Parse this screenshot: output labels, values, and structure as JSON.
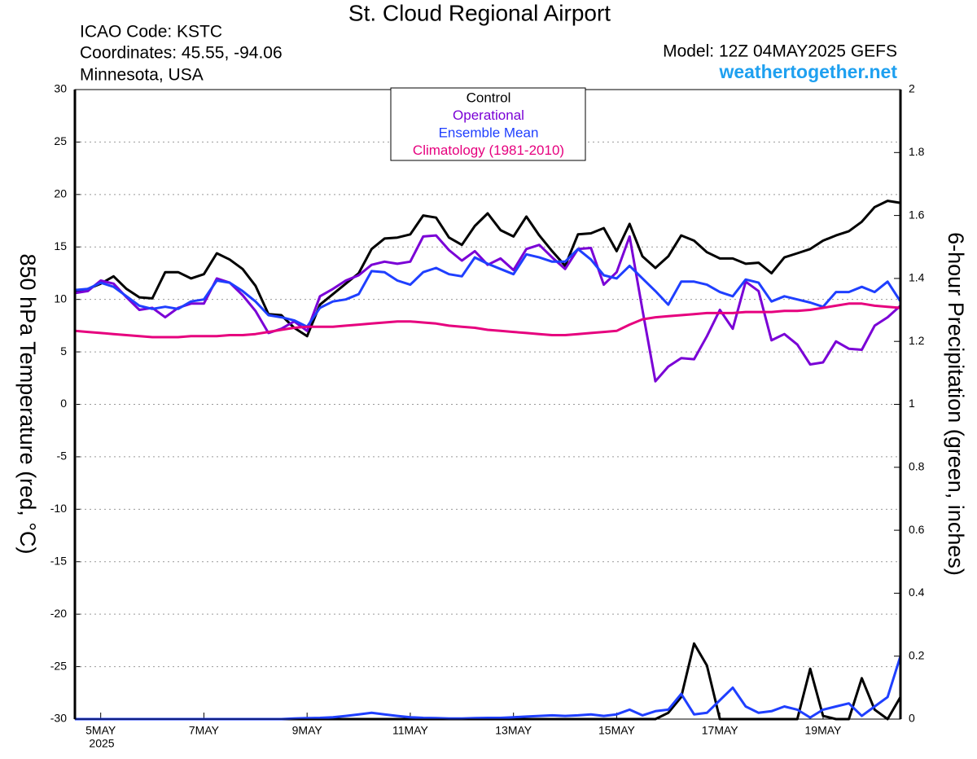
{
  "chart_data": {
    "type": "line",
    "title": "St. Cloud Regional Airport",
    "info": [
      "ICAO Code: KSTC",
      "Coordinates: 45.55, -94.06",
      "Minnesota, USA"
    ],
    "model": "Model: 12Z 04MAY2025 GEFS",
    "site": "weathertogether.net",
    "ylabel": "850 hPa Temperature (red, °C)",
    "y2label": "6-hour Precipitation (green, inches)",
    "year_label": "2025",
    "grid": true,
    "xlim": [
      -0.5,
      15.5
    ],
    "xticks": [
      {
        "value": 0,
        "label": "5MAY"
      },
      {
        "value": 2,
        "label": "7MAY"
      },
      {
        "value": 4,
        "label": "9MAY"
      },
      {
        "value": 6,
        "label": "11MAY"
      },
      {
        "value": 8,
        "label": "13MAY"
      },
      {
        "value": 10,
        "label": "15MAY"
      },
      {
        "value": 12,
        "label": "17MAY"
      },
      {
        "value": 14,
        "label": "19MAY"
      }
    ],
    "ylim": [
      -30,
      30
    ],
    "yticks": [
      -30,
      -25,
      -20,
      -15,
      -10,
      -5,
      0,
      5,
      10,
      15,
      20,
      25,
      30
    ],
    "y2lim": [
      0,
      2
    ],
    "y2ticks": [
      0,
      0.2,
      0.4,
      0.6,
      0.8,
      1,
      1.2,
      1.4,
      1.6,
      1.8,
      2
    ],
    "x": [
      -0.5,
      -0.25,
      0,
      0.25,
      0.5,
      0.75,
      1,
      1.25,
      1.5,
      1.75,
      2,
      2.25,
      2.5,
      2.75,
      3,
      3.25,
      3.5,
      3.75,
      4,
      4.25,
      4.5,
      4.75,
      5,
      5.25,
      5.5,
      5.75,
      6,
      6.25,
      6.5,
      6.75,
      7,
      7.25,
      7.5,
      7.75,
      8,
      8.25,
      8.5,
      8.75,
      9,
      9.25,
      9.5,
      9.75,
      10,
      10.25,
      10.5,
      10.75,
      11,
      11.25,
      11.5,
      11.75,
      12,
      12.25,
      12.5,
      12.75,
      13,
      13.25,
      13.5,
      13.75,
      14,
      14.25,
      14.5,
      14.75,
      15,
      15.25,
      15.5
    ],
    "series": [
      {
        "name": "Control",
        "color": "#000000",
        "width": 3,
        "values": [
          10.8,
          11,
          11.5,
          12.2,
          11,
          10.2,
          10.1,
          12.6,
          12.6,
          12,
          12.4,
          14.4,
          13.8,
          12.9,
          11.3,
          8.6,
          8.5,
          7.3,
          6.5,
          9.5,
          10.5,
          11.5,
          12.5,
          14.8,
          15.8,
          15.9,
          16.2,
          18,
          17.8,
          15.9,
          15.2,
          17,
          18.2,
          16.6,
          16,
          17.9,
          16.1,
          14.6,
          13.2,
          16.2,
          16.3,
          16.8,
          14.6,
          17.2,
          14.1,
          13,
          14.1,
          16.1,
          15.6,
          14.5,
          13.9,
          13.9,
          13.4,
          13.5,
          12.5,
          14,
          14.4,
          14.8,
          15.6,
          16.1,
          16.5,
          17.4,
          18.8,
          19.4,
          19.2
        ]
      },
      {
        "name": "Operational",
        "color": "#7a00d6",
        "width": 3,
        "values": [
          10.6,
          10.8,
          11.8,
          11.5,
          10.2,
          9,
          9.2,
          8.3,
          9.2,
          9.6,
          9.6,
          12,
          11.6,
          10.4,
          8.9,
          6.8,
          7.2,
          7.9,
          7,
          10.3,
          11,
          11.8,
          12.3,
          13.3,
          13.6,
          13.4,
          13.6,
          16,
          16.1,
          14.7,
          13.7,
          14.6,
          13.3,
          13.9,
          12.8,
          14.8,
          15.2,
          14,
          12.9,
          14.8,
          14.9,
          11.4,
          12.6,
          16,
          9,
          2.2,
          3.6,
          4.4,
          4.3,
          6.5,
          9,
          7.2,
          11.7,
          10.8,
          6.1,
          6.7,
          5.7,
          3.8,
          4,
          6,
          5.3,
          5.2,
          7.5,
          8.3,
          9.4
        ]
      },
      {
        "name": "Ensemble Mean",
        "color": "#1f3fff",
        "width": 3,
        "values": [
          10.9,
          11,
          11.6,
          11.2,
          10.3,
          9.4,
          9.1,
          9.3,
          9.1,
          9.8,
          10,
          11.8,
          11.6,
          10.8,
          9.8,
          8.5,
          8.3,
          8,
          7.4,
          9.2,
          9.8,
          10,
          10.5,
          12.7,
          12.6,
          11.8,
          11.4,
          12.6,
          13,
          12.4,
          12.2,
          14,
          13.4,
          12.9,
          12.4,
          14.3,
          14,
          13.6,
          13.6,
          14.8,
          13.8,
          12.3,
          12,
          13.2,
          12,
          10.8,
          9.5,
          11.7,
          11.7,
          11.4,
          10.7,
          10.3,
          11.9,
          11.6,
          9.8,
          10.3,
          10,
          9.7,
          9.3,
          10.7,
          10.7,
          11.2,
          10.7,
          11.7,
          9.8
        ]
      },
      {
        "name": "Climatology (1981-2010)",
        "color": "#e6007e",
        "width": 3,
        "values": [
          7,
          6.9,
          6.8,
          6.7,
          6.6,
          6.5,
          6.4,
          6.4,
          6.4,
          6.5,
          6.5,
          6.5,
          6.6,
          6.6,
          6.7,
          6.9,
          7.1,
          7.3,
          7.4,
          7.4,
          7.4,
          7.5,
          7.6,
          7.7,
          7.8,
          7.9,
          7.9,
          7.8,
          7.7,
          7.5,
          7.4,
          7.3,
          7.1,
          7,
          6.9,
          6.8,
          6.7,
          6.6,
          6.6,
          6.7,
          6.8,
          6.9,
          7,
          7.6,
          8.1,
          8.3,
          8.4,
          8.5,
          8.6,
          8.7,
          8.7,
          8.7,
          8.8,
          8.8,
          8.8,
          8.9,
          8.9,
          9,
          9.2,
          9.4,
          9.6,
          9.6,
          9.4,
          9.3,
          9.2
        ]
      },
      {
        "axis": "y2",
        "color": "#000000",
        "width": 3,
        "values": [
          0,
          0,
          0,
          0,
          0,
          0,
          0,
          0,
          0,
          0,
          0,
          0,
          0,
          0,
          0,
          0,
          0,
          0,
          0,
          0,
          0,
          0,
          0,
          0,
          0,
          0,
          0,
          0,
          0,
          0,
          0,
          0,
          0,
          0,
          0,
          0,
          0,
          0,
          0,
          0,
          0,
          0,
          0,
          0,
          0,
          0,
          0.02,
          0.07,
          0.24,
          0.17,
          0,
          0,
          0,
          0,
          0,
          0,
          0,
          0.16,
          0.01,
          0,
          0,
          0.13,
          0.03,
          0,
          0.07
        ]
      },
      {
        "axis": "y2",
        "color": "#1f3fff",
        "width": 3,
        "values": [
          0,
          0,
          0,
          0,
          0,
          0,
          0,
          0,
          0,
          0,
          0,
          0,
          0,
          0,
          0,
          0,
          0,
          0.002,
          0.003,
          0.004,
          0.006,
          0.01,
          0.015,
          0.02,
          0.015,
          0.01,
          0.006,
          0.004,
          0.003,
          0.002,
          0.002,
          0.003,
          0.004,
          0.004,
          0.006,
          0.008,
          0.01,
          0.012,
          0.01,
          0.012,
          0.015,
          0.01,
          0.015,
          0.03,
          0.012,
          0.025,
          0.03,
          0.08,
          0.015,
          0.02,
          0.06,
          0.1,
          0.04,
          0.02,
          0.025,
          0.04,
          0.03,
          0.005,
          0.03,
          0.04,
          0.05,
          0.01,
          0.04,
          0.07,
          0.2
        ]
      }
    ]
  }
}
